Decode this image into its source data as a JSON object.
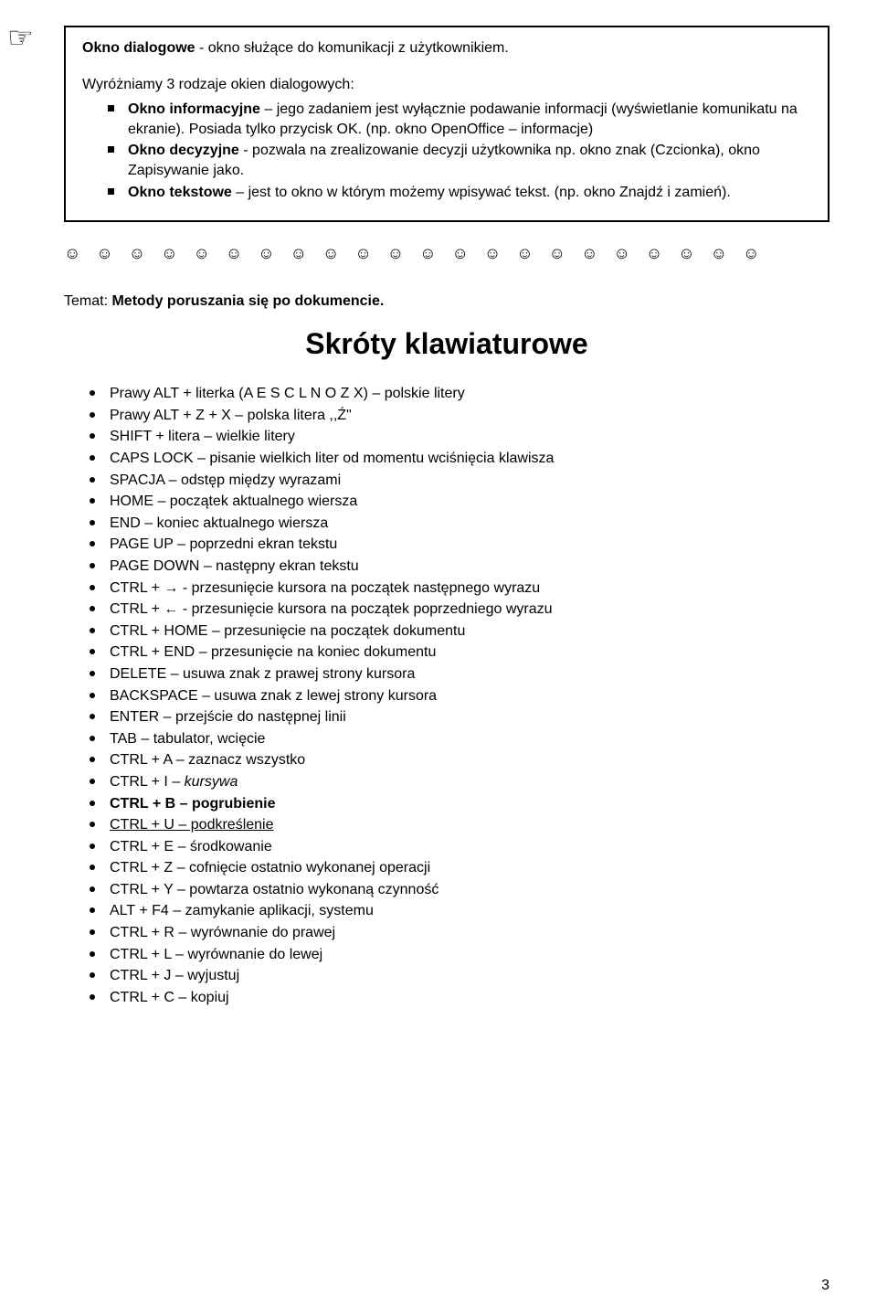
{
  "pointer": "☞",
  "box": {
    "definition_term": "Okno dialogowe",
    "definition_rest": " - okno służące do komunikacji z użytkownikiem.",
    "subhead": "Wyróżniamy 3 rodzaje okien dialogowych:",
    "items": [
      {
        "bold": "Okno informacyjne",
        "rest": " – jego zadaniem jest wyłącznie podawanie informacji (wyświetlanie komunikatu na ekranie). Posiada tylko przycisk OK. (np. okno OpenOffice – informacje)"
      },
      {
        "bold": "Okno decyzyjne",
        "rest": " - pozwala na zrealizowanie decyzji użytkownika np. okno znak (Czcionka), okno Zapisywanie jako."
      },
      {
        "bold": "Okno tekstowe",
        "rest": " – jest to okno w którym możemy wpisywać tekst. (np. okno Znajdź i zamień)."
      }
    ]
  },
  "smileys": "☺ ☺ ☺ ☺ ☺ ☺ ☺ ☺ ☺ ☺ ☺ ☺ ☺ ☺ ☺ ☺ ☺ ☺ ☺ ☺ ☺ ☺",
  "topic_label": "Temat: ",
  "topic_title": "Metody poruszania się po dokumencie.",
  "main_title": "Skróty klawiaturowe",
  "shortcuts": [
    {
      "text": "Prawy ALT + literka (A E S C L N O Z X) – polskie litery"
    },
    {
      "text": "Prawy ALT + Z + X – polska litera ,,Ź\""
    },
    {
      "text": "SHIFT + litera – wielkie litery"
    },
    {
      "text": "CAPS LOCK – pisanie wielkich liter od momentu wciśnięcia klawisza"
    },
    {
      "text": "SPACJA – odstęp między wyrazami"
    },
    {
      "text": "HOME – początek aktualnego wiersza"
    },
    {
      "text": "END – koniec aktualnego wiersza"
    },
    {
      "text": "PAGE UP – poprzedni ekran tekstu"
    },
    {
      "text": "PAGE DOWN – następny ekran tekstu"
    },
    {
      "text": "CTRL + → - przesunięcie kursora na początek następnego wyrazu"
    },
    {
      "text": "CTRL + ← - przesunięcie kursora na początek poprzedniego wyrazu"
    },
    {
      "text": "CTRL + HOME – przesunięcie na początek dokumentu"
    },
    {
      "text": "CTRL + END – przesunięcie na koniec dokumentu"
    },
    {
      "text": "DELETE – usuwa znak z prawej strony kursora"
    },
    {
      "text": "BACKSPACE – usuwa znak z lewej strony kursora"
    },
    {
      "text": "ENTER – przejście do następnej linii"
    },
    {
      "text": "TAB – tabulator, wcięcie"
    },
    {
      "text": "CTRL + A – zaznacz wszystko"
    },
    {
      "prefix": "CTRL + I – ",
      "styled": "kursywa",
      "style": "italic"
    },
    {
      "text": "CTRL + B – pogrubienie",
      "style": "bold"
    },
    {
      "text": "CTRL + U – podkreślenie",
      "style": "underline"
    },
    {
      "text": "CTRL + E – środkowanie"
    },
    {
      "text": "CTRL + Z – cofnięcie ostatnio wykonanej operacji"
    },
    {
      "text": "CTRL + Y – powtarza ostatnio wykonaną czynność"
    },
    {
      "text": "ALT + F4 – zamykanie aplikacji, systemu"
    },
    {
      "text": "CTRL + R – wyrównanie do prawej"
    },
    {
      "text": "CTRL + L – wyrównanie do lewej"
    },
    {
      "text": "CTRL + J – wyjustuj"
    },
    {
      "text": "CTRL + C – kopiuj"
    }
  ],
  "page_number": "3"
}
